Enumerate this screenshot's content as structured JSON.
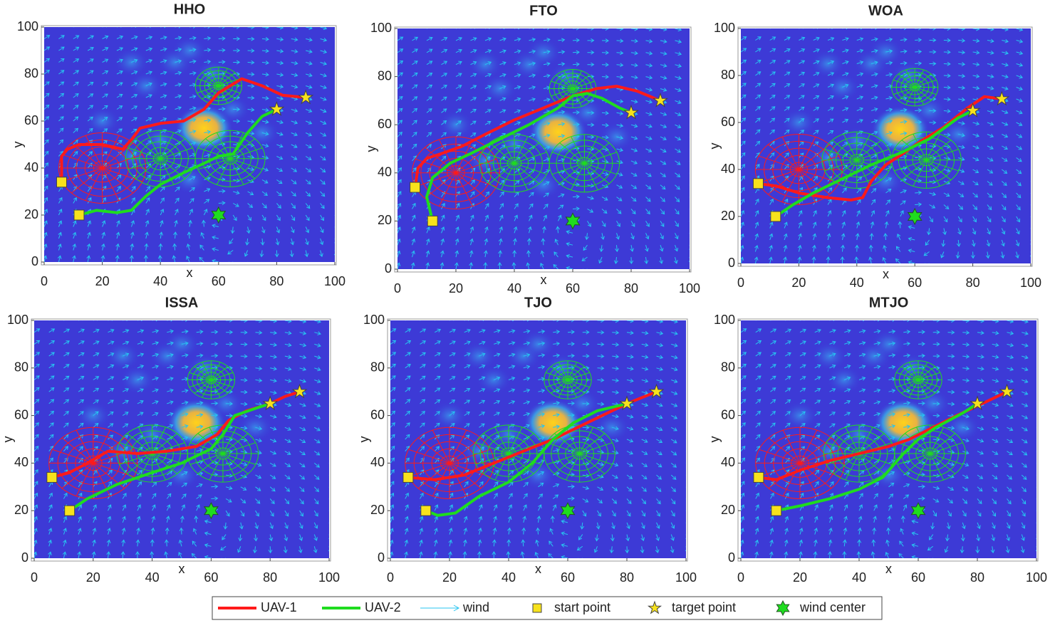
{
  "chart_data": [
    {
      "type": "line",
      "title": "HHO",
      "xlabel": "x",
      "ylabel": "y",
      "xlim": [
        0,
        100
      ],
      "ylim": [
        0,
        100
      ],
      "xticks": [
        0,
        20,
        40,
        60,
        80,
        100
      ],
      "yticks": [
        0,
        20,
        40,
        60,
        80,
        100
      ],
      "series": [
        {
          "color": "#ff1a1a",
          "x": [
            6,
            6,
            8,
            12,
            20,
            27,
            30,
            33,
            40,
            48,
            55,
            60,
            68,
            75,
            82,
            90
          ],
          "values": [
            34,
            45,
            48,
            50,
            50,
            48,
            52,
            57,
            59,
            60,
            65,
            72,
            78,
            75,
            71,
            70
          ]
        },
        {
          "color": "#1fdc1f",
          "x": [
            12,
            18,
            25,
            30,
            35,
            40,
            48,
            55,
            60,
            65,
            70,
            75,
            80
          ],
          "values": [
            20,
            22,
            21,
            22,
            28,
            33,
            38,
            42,
            45,
            46,
            55,
            62,
            65
          ]
        }
      ],
      "start": {
        "x": [
          6,
          12
        ],
        "y": [
          34,
          20
        ]
      },
      "target": {
        "x": [
          90,
          80
        ],
        "y": [
          70,
          65
        ]
      },
      "wind_center": {
        "x": 60,
        "y": 20
      }
    },
    {
      "type": "line",
      "title": "FTO",
      "xlabel": "x",
      "ylabel": "y",
      "xlim": [
        0,
        100
      ],
      "ylim": [
        0,
        100
      ],
      "xticks": [
        0,
        20,
        40,
        60,
        80,
        100
      ],
      "yticks": [
        0,
        20,
        40,
        60,
        80,
        100
      ],
      "series": [
        {
          "color": "#ff1a1a",
          "x": [
            6,
            7,
            10,
            15,
            22,
            30,
            40,
            50,
            60,
            68,
            75,
            82,
            90
          ],
          "values": [
            34,
            42,
            46,
            48,
            51,
            56,
            62,
            67,
            72,
            75,
            76,
            74,
            70
          ]
        },
        {
          "color": "#1fdc1f",
          "x": [
            12,
            10,
            12,
            18,
            25,
            35,
            45,
            55,
            60,
            65,
            70,
            76,
            80
          ],
          "values": [
            20,
            30,
            38,
            44,
            48,
            54,
            60,
            67,
            72,
            73,
            71,
            67,
            65
          ]
        }
      ],
      "start": {
        "x": [
          6,
          12
        ],
        "y": [
          34,
          20
        ]
      },
      "target": {
        "x": [
          90,
          80
        ],
        "y": [
          70,
          65
        ]
      },
      "wind_center": {
        "x": 60,
        "y": 20
      }
    },
    {
      "type": "line",
      "title": "WOA",
      "xlabel": "x",
      "ylabel": "y",
      "xlim": [
        0,
        100
      ],
      "ylim": [
        0,
        100
      ],
      "xticks": [
        0,
        20,
        40,
        60,
        80,
        100
      ],
      "yticks": [
        0,
        20,
        40,
        60,
        80,
        100
      ],
      "series": [
        {
          "color": "#ff1a1a",
          "x": [
            6,
            12,
            20,
            30,
            38,
            42,
            45,
            50,
            55,
            62,
            70,
            78,
            84,
            90
          ],
          "values": [
            34,
            33,
            30,
            28,
            27,
            28,
            35,
            42,
            46,
            52,
            58,
            66,
            71,
            70
          ]
        },
        {
          "color": "#1fdc1f",
          "x": [
            12,
            18,
            25,
            35,
            45,
            55,
            65,
            75,
            80
          ],
          "values": [
            20,
            25,
            30,
            36,
            42,
            47,
            53,
            62,
            65
          ]
        }
      ],
      "start": {
        "x": [
          6,
          12
        ],
        "y": [
          34,
          20
        ]
      },
      "target": {
        "x": [
          90,
          80
        ],
        "y": [
          70,
          65
        ]
      },
      "wind_center": {
        "x": 60,
        "y": 20
      }
    },
    {
      "type": "line",
      "title": "ISSA",
      "xlabel": "x",
      "ylabel": "y",
      "xlim": [
        0,
        100
      ],
      "ylim": [
        0,
        100
      ],
      "xticks": [
        0,
        20,
        40,
        60,
        80,
        100
      ],
      "yticks": [
        0,
        20,
        40,
        60,
        80,
        100
      ],
      "series": [
        {
          "color": "#ff1a1a",
          "x": [
            6,
            12,
            18,
            25,
            35,
            45,
            55,
            62,
            66,
            72,
            80,
            85,
            90
          ],
          "values": [
            34,
            36,
            40,
            45,
            44,
            45,
            47,
            52,
            58,
            62,
            65,
            68,
            70
          ]
        },
        {
          "color": "#1fdc1f",
          "x": [
            12,
            18,
            28,
            40,
            50,
            60,
            64,
            68,
            75,
            80
          ],
          "values": [
            20,
            25,
            31,
            36,
            40,
            46,
            52,
            60,
            63,
            65
          ]
        }
      ],
      "start": {
        "x": [
          6,
          12
        ],
        "y": [
          34,
          20
        ]
      },
      "target": {
        "x": [
          90,
          80
        ],
        "y": [
          70,
          65
        ]
      },
      "wind_center": {
        "x": 60,
        "y": 20
      }
    },
    {
      "type": "line",
      "title": "TJO",
      "xlabel": "x",
      "ylabel": "y",
      "xlim": [
        0,
        100
      ],
      "ylim": [
        0,
        100
      ],
      "xticks": [
        0,
        20,
        40,
        60,
        80,
        100
      ],
      "yticks": [
        0,
        20,
        40,
        60,
        80,
        100
      ],
      "series": [
        {
          "color": "#ff1a1a",
          "x": [
            6,
            15,
            25,
            35,
            45,
            55,
            65,
            75,
            82,
            90
          ],
          "values": [
            34,
            33,
            35,
            40,
            45,
            50,
            56,
            62,
            66,
            70
          ]
        },
        {
          "color": "#1fdc1f",
          "x": [
            12,
            16,
            22,
            30,
            40,
            48,
            55,
            62,
            70,
            80
          ],
          "values": [
            20,
            18,
            19,
            26,
            32,
            40,
            50,
            57,
            62,
            65
          ]
        }
      ],
      "start": {
        "x": [
          6,
          12
        ],
        "y": [
          34,
          20
        ]
      },
      "target": {
        "x": [
          90,
          80
        ],
        "y": [
          70,
          65
        ]
      },
      "wind_center": {
        "x": 60,
        "y": 20
      }
    },
    {
      "type": "line",
      "title": "MTJO",
      "xlabel": "x",
      "ylabel": "y",
      "xlim": [
        0,
        100
      ],
      "ylim": [
        0,
        100
      ],
      "xticks": [
        0,
        20,
        40,
        60,
        80,
        100
      ],
      "yticks": [
        0,
        20,
        40,
        60,
        80,
        100
      ],
      "series": [
        {
          "color": "#ff1a1a",
          "x": [
            6,
            12,
            20,
            30,
            40,
            50,
            57,
            65,
            73,
            80,
            90
          ],
          "values": [
            34,
            33,
            37,
            41,
            44,
            47,
            50,
            55,
            60,
            64,
            70
          ]
        },
        {
          "color": "#1fdc1f",
          "x": [
            12,
            20,
            30,
            40,
            48,
            55,
            60,
            66,
            75,
            80
          ],
          "values": [
            20,
            22,
            25,
            29,
            34,
            44,
            50,
            55,
            61,
            65
          ]
        }
      ],
      "start": {
        "x": [
          6,
          12
        ],
        "y": [
          34,
          20
        ]
      },
      "target": {
        "x": [
          90,
          80
        ],
        "y": [
          70,
          65
        ]
      },
      "wind_center": {
        "x": 60,
        "y": 20
      }
    }
  ],
  "threats": {
    "x": [
      20,
      40,
      64,
      60
    ],
    "y": [
      40,
      44,
      44,
      75
    ],
    "r": [
      15,
      12,
      12,
      8
    ],
    "color": [
      "#ff1a1a",
      "#1fdc1f",
      "#1fdc1f",
      "#1fdc1f"
    ]
  },
  "peaks": {
    "x": [
      55,
      30,
      40,
      50,
      65,
      75,
      35,
      45,
      50,
      30,
      20,
      58
    ],
    "y": [
      57,
      45,
      52,
      35,
      65,
      55,
      75,
      85,
      90,
      85,
      60,
      80
    ]
  },
  "legend": [
    "UAV-1",
    "UAV-2",
    "wind",
    "start point",
    "target point",
    "wind center"
  ]
}
